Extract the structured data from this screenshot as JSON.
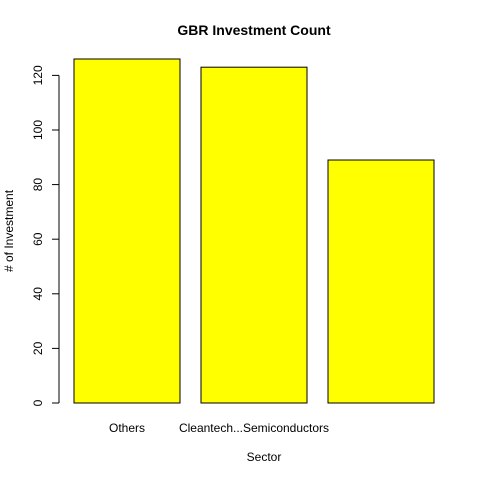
{
  "chart_data": {
    "type": "bar",
    "title": "GBR Investment Count",
    "xlabel": "Sector",
    "ylabel": "# of Investment",
    "categories": [
      "Others",
      "Cleantech...Semiconductors",
      ""
    ],
    "values": [
      126,
      123,
      89
    ],
    "ylim": [
      0,
      130
    ],
    "yticks": [
      0,
      20,
      40,
      60,
      80,
      100,
      120
    ],
    "bar_color": "#ffff00",
    "grid": false
  }
}
